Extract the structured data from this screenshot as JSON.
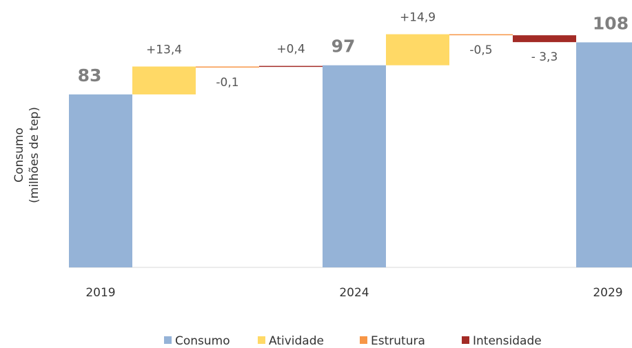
{
  "chart_data": {
    "type": "waterfall",
    "y_label": [
      "Consumo",
      "(milhões de tep)"
    ],
    "categories": [
      "2019",
      null,
      null,
      null,
      "2024",
      null,
      null,
      null,
      "2029"
    ],
    "series": [
      {
        "name": "Consumo",
        "color": "#95b3d7",
        "total": true,
        "values": [
          83,
          null,
          null,
          null,
          97,
          null,
          null,
          null,
          108
        ],
        "value_labels": [
          "83",
          null,
          null,
          null,
          "97",
          null,
          null,
          null,
          "108"
        ]
      },
      {
        "name": "Atividade",
        "color": "#ffd966",
        "values": [
          null,
          13.4,
          null,
          null,
          null,
          14.9,
          null,
          null,
          null
        ],
        "value_labels": [
          null,
          "+13,4",
          null,
          null,
          null,
          "+14,9",
          null,
          null,
          null
        ]
      },
      {
        "name": "Estrutura",
        "color": "#f79646",
        "values": [
          null,
          null,
          -0.1,
          null,
          null,
          null,
          -0.5,
          null,
          null
        ],
        "value_labels": [
          null,
          null,
          "-0,1",
          null,
          null,
          null,
          "-0,5",
          null,
          null
        ]
      },
      {
        "name": "Intensidade",
        "color": "#a32b26",
        "values": [
          null,
          null,
          null,
          0.4,
          null,
          null,
          null,
          -3.3,
          null
        ],
        "value_labels": [
          null,
          null,
          null,
          "+0,4",
          null,
          null,
          null,
          "- 3,3",
          null
        ]
      }
    ],
    "ylim": [
      0,
      110
    ]
  }
}
